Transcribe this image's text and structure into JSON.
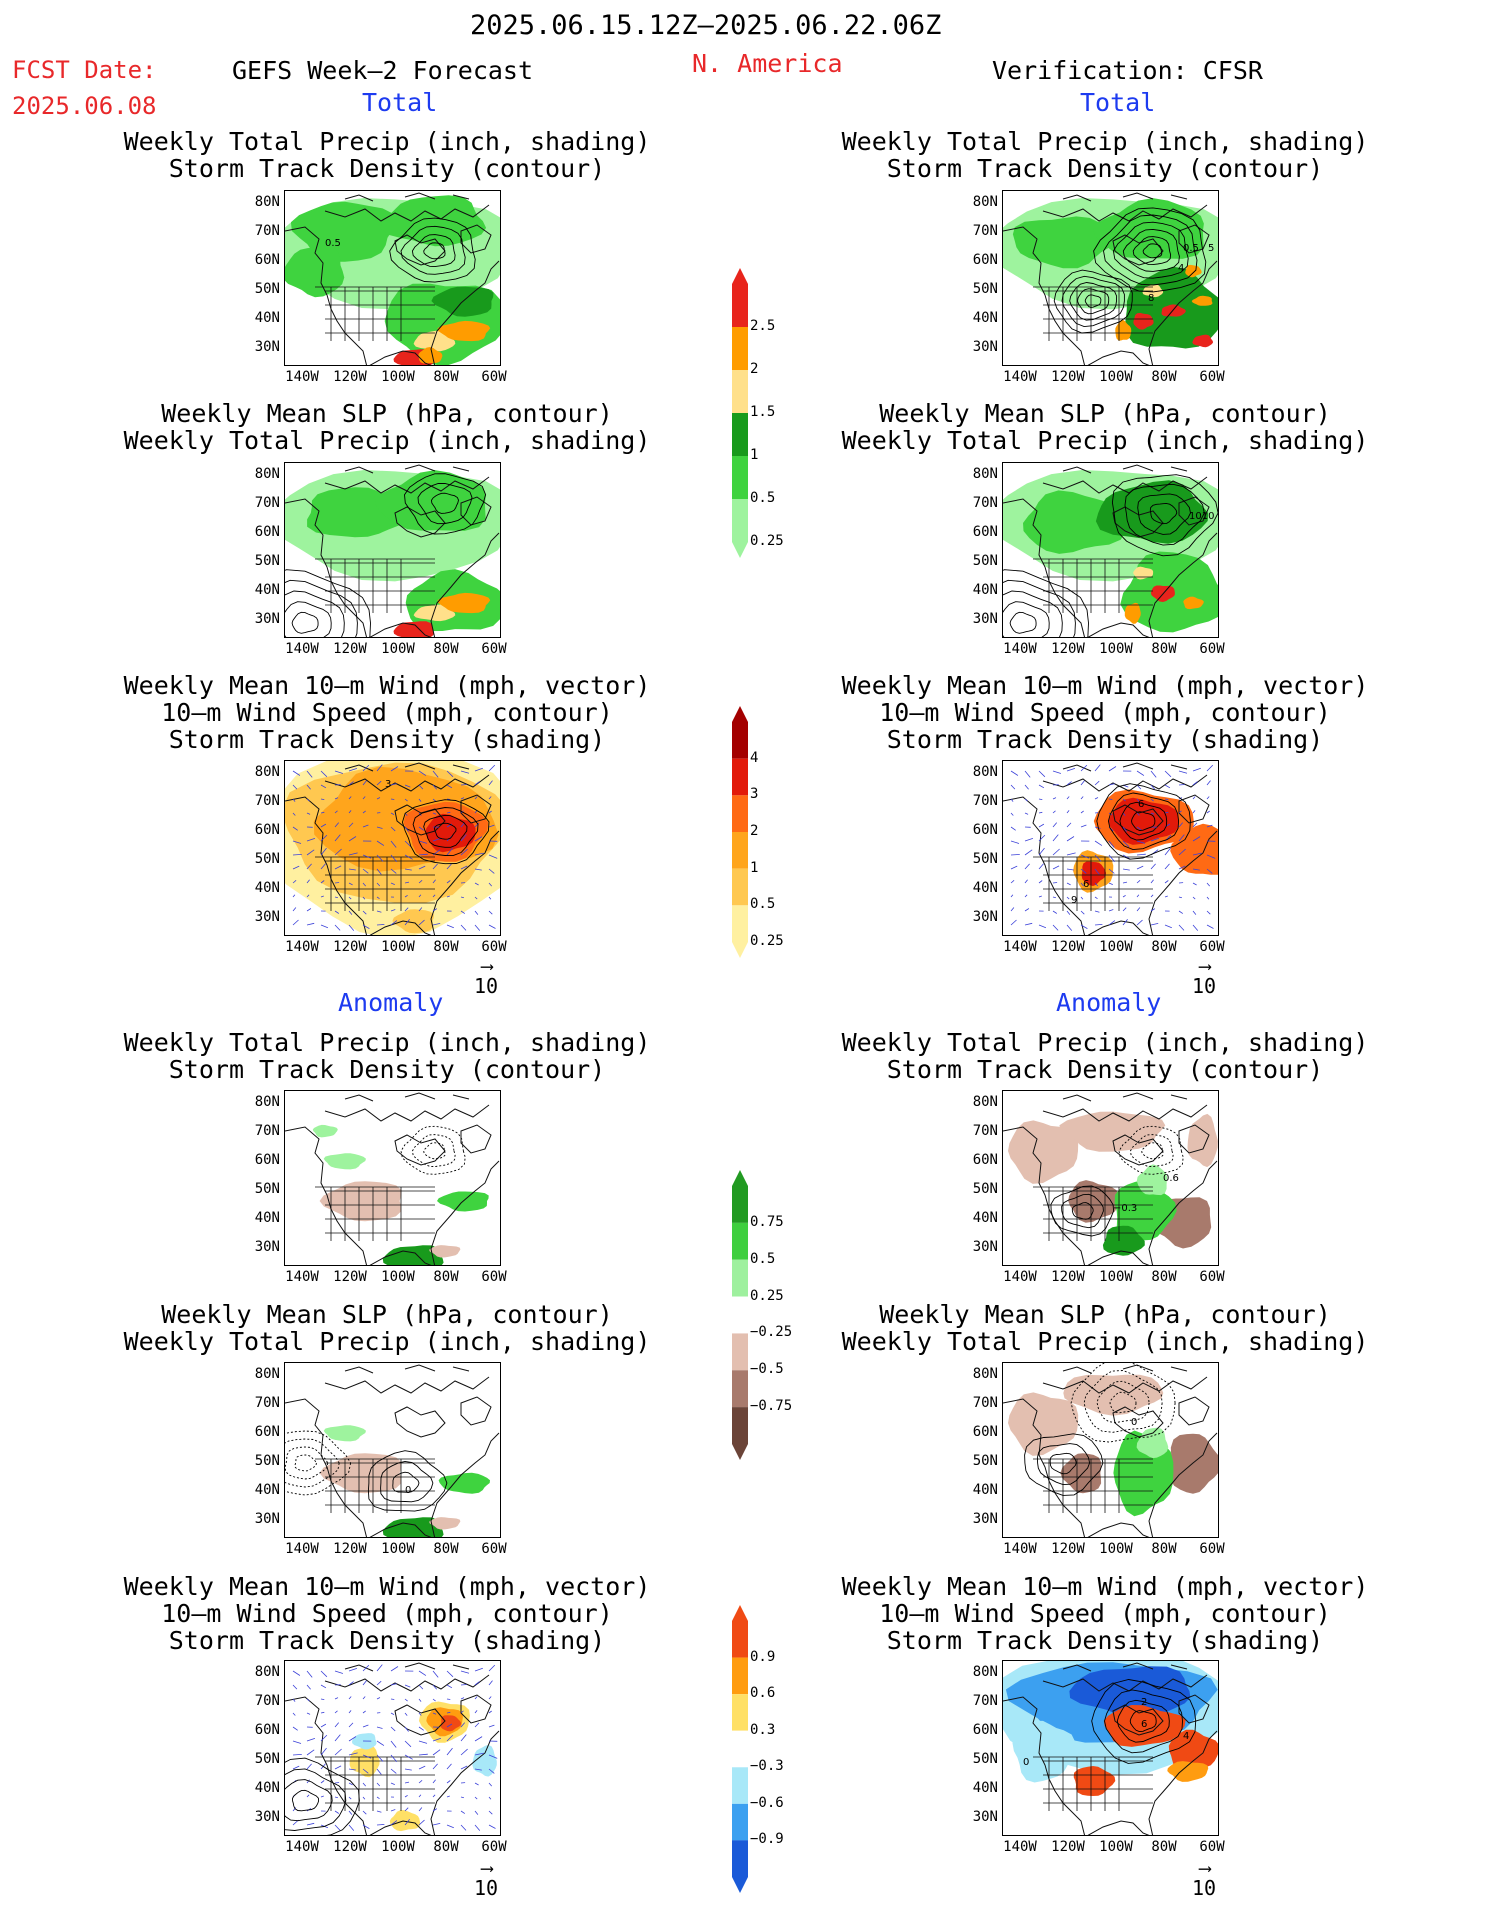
{
  "header": {
    "period": "2025.06.15.12Z—2025.06.22.06Z",
    "fcst_label": "FCST Date:",
    "fcst_date": "2025.06.08",
    "model": "GEFS Week—2 Forecast",
    "region": "N. America",
    "verification": "Verification: CFSR"
  },
  "sections": {
    "total": "Total",
    "anomaly": "Anomaly"
  },
  "titles": {
    "precip_track": "Weekly Total Precip (inch, shading)\nStorm Track Density (contour)",
    "slp_precip": "Weekly Mean SLP (hPa, contour)\nWeekly Total Precip (inch, shading)",
    "wind_track": "Weekly Mean 10—m Wind (mph, vector)\n10—m Wind Speed (mph, contour)\nStorm Track Density (shading)"
  },
  "axes": {
    "lat_labels": [
      "80N",
      "70N",
      "60N",
      "50N",
      "40N",
      "30N"
    ],
    "lon_labels": [
      "140W",
      "120W",
      "100W",
      "80W",
      "60W"
    ]
  },
  "vector_reference": "10",
  "colorbars": {
    "precip_total": {
      "labels": [
        "2.5",
        "2",
        "1.5",
        "1",
        "0.5",
        "0.25"
      ],
      "colors": [
        "#e8241c",
        "#ff9c00",
        "#ffe08a",
        "#189a1c",
        "#3fd33f",
        "#9ef39e"
      ]
    },
    "track_total": {
      "labels": [
        "4",
        "3",
        "2",
        "1",
        "0.5",
        "0.25"
      ],
      "colors": [
        "#a40000",
        "#e21a0a",
        "#ff6a14",
        "#ffa51c",
        "#ffc850",
        "#fff0a0"
      ]
    },
    "precip_anom": {
      "labels": [
        "0.75",
        "0.5",
        "0.25",
        "−0.25",
        "−0.5",
        "−0.75"
      ],
      "colors": [
        "#229a22",
        "#3fcf3f",
        "#9ef09e",
        "#ffffff",
        "#e3bfb0",
        "#a87a6c",
        "#6b4438"
      ]
    },
    "track_anom": {
      "labels": [
        "0.9",
        "0.6",
        "0.3",
        "−0.3",
        "−0.6",
        "−0.9"
      ],
      "colors": [
        "#f04a14",
        "#ff9c10",
        "#ffe066",
        "#ffffff",
        "#a8e8f8",
        "#3ca0f0",
        "#1a5ad8"
      ]
    }
  },
  "panel_annotations": {
    "fc_precip_total": [
      "0.5"
    ],
    "ver_precip_total": [
      "0.5",
      "5",
      "4",
      "8"
    ],
    "ver_slp_total": [
      "1010"
    ],
    "fc_wind_total": [
      "3"
    ],
    "ver_wind_total": [
      "6",
      "6",
      "9"
    ],
    "ver_precip_anom": [
      "0.6",
      "−0.3"
    ],
    "ver_slp_anom": [
      "0"
    ],
    "fc_slp_anom": [
      "0"
    ],
    "ver_wind_anom": [
      "2",
      "6",
      "4",
      "0"
    ]
  }
}
